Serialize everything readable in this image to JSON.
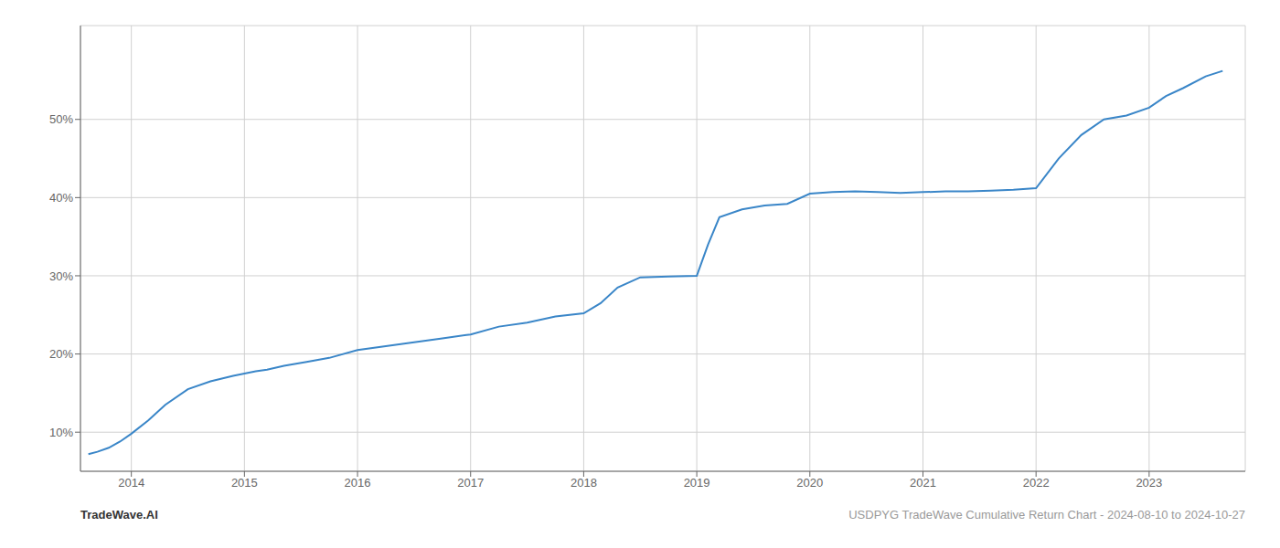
{
  "chart_data": {
    "type": "line",
    "annotations": [
      "TradeWave.AI",
      "USDPYG TradeWave Cumulative Return Chart - 2024-08-10 to 2024-10-27"
    ],
    "x": [
      2013.62,
      2013.7,
      2013.8,
      2013.9,
      2014.0,
      2014.15,
      2014.3,
      2014.5,
      2014.7,
      2014.9,
      2015.0,
      2015.1,
      2015.2,
      2015.35,
      2015.55,
      2015.75,
      2016.0,
      2016.25,
      2016.5,
      2016.75,
      2017.0,
      2017.25,
      2017.5,
      2017.75,
      2018.0,
      2018.15,
      2018.3,
      2018.5,
      2018.75,
      2019.0,
      2019.1,
      2019.2,
      2019.4,
      2019.6,
      2019.8,
      2020.0,
      2020.2,
      2020.4,
      2020.6,
      2020.8,
      2021.0,
      2021.2,
      2021.4,
      2021.6,
      2021.8,
      2022.0,
      2022.2,
      2022.4,
      2022.6,
      2022.8,
      2023.0,
      2023.15,
      2023.3,
      2023.5,
      2023.65
    ],
    "values": [
      7.2,
      7.5,
      8.0,
      8.8,
      9.8,
      11.5,
      13.5,
      15.5,
      16.5,
      17.2,
      17.5,
      17.8,
      18.0,
      18.5,
      19.0,
      19.5,
      20.5,
      21.0,
      21.5,
      22.0,
      22.5,
      23.5,
      24.0,
      24.8,
      25.2,
      26.5,
      28.5,
      29.8,
      29.9,
      30.0,
      34.0,
      37.5,
      38.5,
      39.0,
      39.2,
      40.5,
      40.7,
      40.8,
      40.7,
      40.6,
      40.7,
      40.8,
      40.8,
      40.9,
      41.0,
      41.2,
      45.0,
      48.0,
      50.0,
      50.5,
      51.5,
      53.0,
      54.0,
      55.5,
      56.2
    ],
    "color": "#3a86c8",
    "xlim": [
      2013.55,
      2023.85
    ],
    "xticks": [
      2014,
      2015,
      2016,
      2017,
      2018,
      2019,
      2020,
      2021,
      2022,
      2023
    ],
    "ylim": [
      5,
      62
    ],
    "yticks": [
      {
        "value": 10,
        "label": "10%"
      },
      {
        "value": 20,
        "label": "20%"
      },
      {
        "value": 30,
        "label": "30%"
      },
      {
        "value": 40,
        "label": "40%"
      },
      {
        "value": 50,
        "label": "50%"
      }
    ],
    "grid": true
  }
}
